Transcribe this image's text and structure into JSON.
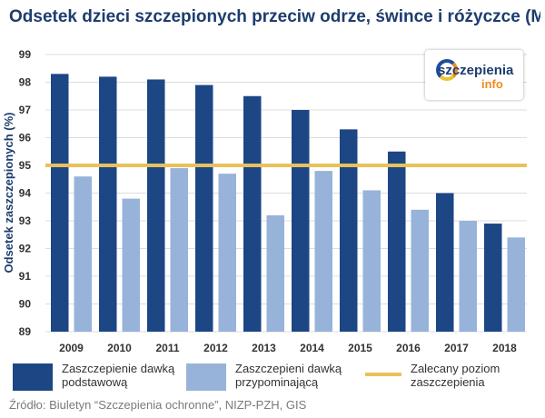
{
  "title": "Odsetek dzieci szczepionych przeciw odrze, śwince i różyczce (MMR)",
  "source": "Źródło: Biuletyn “Szczepienia ochronne”, NIZP-PZH, GIS",
  "logo": {
    "text_main": "szczepienia",
    "text_sub": "info"
  },
  "colors": {
    "primary": "#1d4685",
    "booster": "#98b3d9",
    "threshold": "#e8c15a",
    "grid": "#dddddd"
  },
  "chart_data": {
    "type": "bar",
    "title": "Odsetek dzieci szczepionych przeciw odrze, śwince i różyczce (MMR)",
    "ylabel": "Odsetek zaszczepionych (%)",
    "xlabel": "",
    "ylim": [
      89,
      99
    ],
    "yticks": [
      89,
      90,
      91,
      92,
      93,
      94,
      95,
      96,
      97,
      98,
      99
    ],
    "grid": true,
    "legend": "bottom",
    "categories": [
      "2009",
      "2010",
      "2011",
      "2012",
      "2013",
      "2014",
      "2015",
      "2016",
      "2017",
      "2018"
    ],
    "series": [
      {
        "name": "Zaszczepienie dawką podstawową",
        "values": [
          98.3,
          98.2,
          98.1,
          97.9,
          97.5,
          97.0,
          96.3,
          95.5,
          94.0,
          92.9
        ]
      },
      {
        "name": "Zaszczepieni dawką przypominającą",
        "values": [
          94.6,
          93.8,
          94.9,
          94.7,
          93.2,
          94.8,
          94.1,
          93.4,
          93.0,
          92.4
        ]
      }
    ],
    "reference_line": {
      "name": "Zalecany poziom zaszczepienia",
      "value": 95
    }
  }
}
